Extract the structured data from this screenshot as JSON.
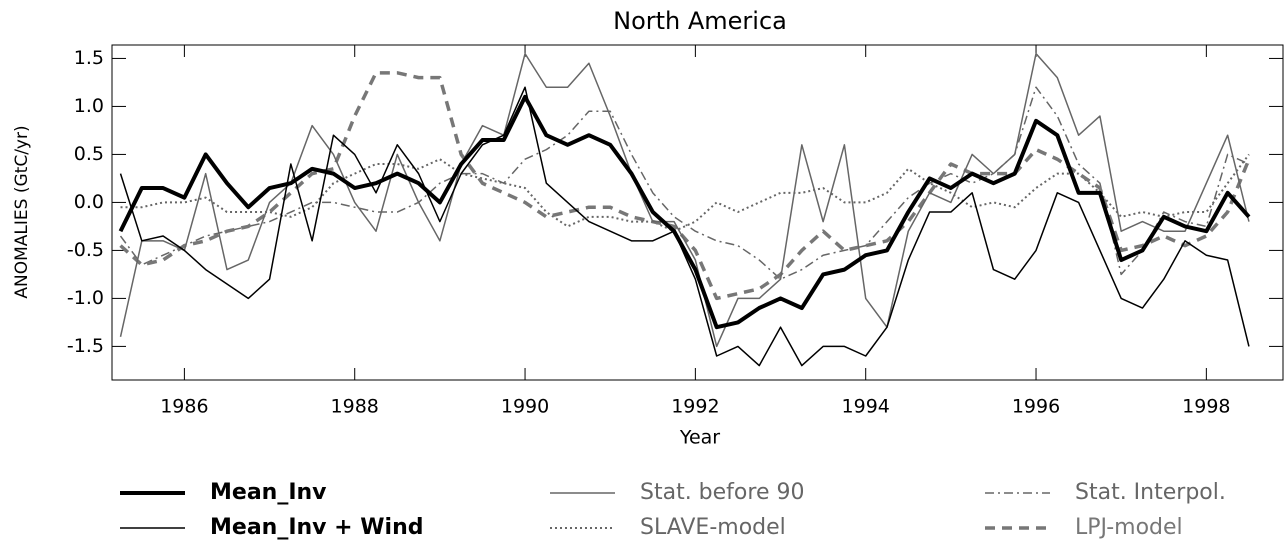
{
  "chart_data": {
    "type": "line",
    "title": "North America",
    "x_label": "Year",
    "y_label": "ANOMALIES (GtC/yr)",
    "x": [
      1985.25,
      1985.5,
      1985.75,
      1986,
      1986.25,
      1986.5,
      1986.75,
      1987,
      1987.25,
      1987.5,
      1987.75,
      1988,
      1988.25,
      1988.5,
      1988.75,
      1989,
      1989.25,
      1989.5,
      1989.75,
      1990,
      1990.25,
      1990.5,
      1990.75,
      1991,
      1991.25,
      1991.5,
      1991.75,
      1992,
      1992.25,
      1992.5,
      1992.75,
      1993,
      1993.25,
      1993.5,
      1993.75,
      1994,
      1994.25,
      1994.5,
      1994.75,
      1995,
      1995.25,
      1995.5,
      1995.75,
      1996,
      1996.25,
      1996.5,
      1996.75,
      1997,
      1997.25,
      1997.5,
      1997.75,
      1998,
      1998.25,
      1998.5
    ],
    "xlim": [
      1985.15,
      1998.9
    ],
    "xticks": [
      1986,
      1988,
      1990,
      1992,
      1994,
      1996,
      1998
    ],
    "ylim": [
      -1.85,
      1.64
    ],
    "yticks": [
      {
        "value": -1.5,
        "label": "-1.5"
      },
      {
        "value": -1,
        "label": "-1.0"
      },
      -0.5,
      {
        "value": 0,
        "label": "0.0"
      },
      0.5,
      {
        "value": 1,
        "label": "1.0"
      },
      1.5
    ],
    "series": [
      {
        "name": "Mean_Inv",
        "color": "#000000",
        "width": 4,
        "dash": "solid",
        "values": [
          -0.3,
          0.15,
          0.15,
          0.05,
          0.5,
          0.2,
          -0.05,
          0.15,
          0.2,
          0.35,
          0.3,
          0.15,
          0.2,
          0.3,
          0.2,
          0.0,
          0.4,
          0.65,
          0.65,
          1.1,
          0.7,
          0.6,
          0.7,
          0.6,
          0.3,
          -0.1,
          -0.3,
          -0.7,
          -1.3,
          -1.25,
          -1.1,
          -1.0,
          -1.1,
          -0.75,
          -0.7,
          -0.55,
          -0.5,
          -0.1,
          0.25,
          0.15,
          0.3,
          0.2,
          0.3,
          0.85,
          0.7,
          0.1,
          0.1,
          -0.6,
          -0.5,
          -0.15,
          -0.25,
          -0.3,
          0.1,
          -0.15
        ]
      },
      {
        "name": "Mean_Inv + Wind",
        "color": "#000000",
        "width": 1.5,
        "dash": "solid",
        "values": [
          0.3,
          -0.4,
          -0.35,
          -0.5,
          -0.7,
          -0.85,
          -1.0,
          -0.8,
          0.4,
          -0.4,
          0.7,
          0.5,
          0.1,
          0.6,
          0.3,
          -0.2,
          0.3,
          0.6,
          0.7,
          1.2,
          0.2,
          0.0,
          -0.2,
          -0.3,
          -0.4,
          -0.4,
          -0.3,
          -0.8,
          -1.6,
          -1.5,
          -1.7,
          -1.3,
          -1.7,
          -1.5,
          -1.5,
          -1.6,
          -1.3,
          -0.6,
          -0.1,
          -0.1,
          0.1,
          -0.7,
          -0.8,
          -0.5,
          0.1,
          0.0,
          -0.5,
          -1.0,
          -1.1,
          -0.8,
          -0.4,
          -0.55,
          -0.6,
          -1.5
        ]
      },
      {
        "name": "Stat. before 90",
        "color": "#666666",
        "width": 1.5,
        "dash": "solid",
        "values": [
          -1.4,
          -0.4,
          -0.4,
          -0.5,
          0.3,
          -0.7,
          -0.6,
          0.0,
          0.2,
          0.8,
          0.5,
          0.0,
          -0.3,
          0.5,
          0.0,
          -0.4,
          0.4,
          0.8,
          0.7,
          1.55,
          1.2,
          1.2,
          1.45,
          0.9,
          0.3,
          -0.2,
          -0.2,
          -0.6,
          -1.5,
          -1.0,
          -1.0,
          -0.8,
          0.6,
          -0.2,
          0.6,
          -1.0,
          -1.3,
          -0.3,
          0.1,
          0.0,
          0.5,
          0.3,
          0.5,
          1.55,
          1.3,
          0.7,
          0.9,
          -0.3,
          -0.2,
          -0.3,
          -0.3,
          0.2,
          0.7,
          -0.2
        ]
      },
      {
        "name": "SLAVE-model",
        "color": "#666666",
        "width": 2,
        "dash": "2,3",
        "values": [
          -0.05,
          -0.05,
          0.0,
          0.0,
          0.05,
          -0.1,
          -0.1,
          -0.1,
          -0.15,
          -0.05,
          0.2,
          0.3,
          0.4,
          0.4,
          0.35,
          0.45,
          0.3,
          0.25,
          0.2,
          0.15,
          -0.1,
          -0.25,
          -0.15,
          -0.15,
          -0.2,
          -0.2,
          -0.3,
          -0.2,
          0.0,
          -0.1,
          0.0,
          0.1,
          0.1,
          0.15,
          0.0,
          0.0,
          0.1,
          0.35,
          0.2,
          0.1,
          -0.05,
          0.0,
          -0.05,
          0.15,
          0.3,
          0.3,
          0.1,
          -0.15,
          -0.1,
          -0.15,
          -0.1,
          -0.1,
          0.2,
          0.5
        ]
      },
      {
        "name": "Stat. Interpol.",
        "color": "#666666",
        "width": 1.5,
        "dash": "9,4,2,4",
        "values": [
          -0.35,
          -0.65,
          -0.55,
          -0.45,
          -0.35,
          -0.3,
          -0.25,
          -0.2,
          -0.1,
          0.0,
          0.0,
          -0.05,
          -0.1,
          -0.1,
          0.0,
          0.2,
          0.3,
          0.3,
          0.2,
          0.45,
          0.55,
          0.7,
          0.95,
          0.95,
          0.5,
          0.1,
          -0.15,
          -0.3,
          -0.4,
          -0.45,
          -0.6,
          -0.8,
          -0.7,
          -0.55,
          -0.5,
          -0.45,
          -0.2,
          0.05,
          0.2,
          0.3,
          0.2,
          0.3,
          0.5,
          1.2,
          0.9,
          0.4,
          0.2,
          -0.75,
          -0.5,
          -0.1,
          -0.2,
          -0.25,
          0.5,
          0.4
        ]
      },
      {
        "name": "LPJ-model",
        "color": "#777777",
        "width": 3.5,
        "dash": "10,7",
        "values": [
          -0.45,
          -0.65,
          -0.6,
          -0.45,
          -0.4,
          -0.3,
          -0.25,
          -0.1,
          0.1,
          0.3,
          0.35,
          0.9,
          1.35,
          1.35,
          1.3,
          1.3,
          0.5,
          0.2,
          0.1,
          0.0,
          -0.15,
          -0.1,
          -0.05,
          -0.05,
          -0.15,
          -0.2,
          -0.25,
          -0.5,
          -1.0,
          -0.95,
          -0.9,
          -0.75,
          -0.5,
          -0.3,
          -0.5,
          -0.45,
          -0.4,
          -0.2,
          0.1,
          0.4,
          0.3,
          0.3,
          0.3,
          0.55,
          0.45,
          0.3,
          0.15,
          -0.5,
          -0.45,
          -0.35,
          -0.45,
          -0.35,
          -0.1,
          0.45
        ]
      }
    ]
  }
}
